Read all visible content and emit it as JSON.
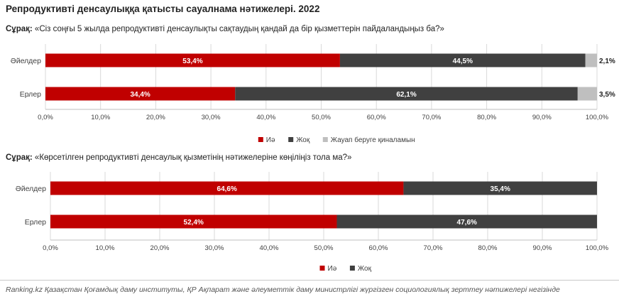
{
  "title": "Репродуктивті денсаулыққа қатысты сауалнама нәтижелері. 2022",
  "question_prefix": "Сұрақ:",
  "colors": {
    "yes": "#c00000",
    "no": "#404040",
    "undecided": "#bfbfbf"
  },
  "chart_data": [
    {
      "type": "bar",
      "orientation": "horizontal",
      "stacked": true,
      "question": "«Сіз соңғы 5 жылда репродуктивті денсаулықты сақтаудың қандай да бір қызметтерін пайдаландыңыз ба?»",
      "categories": [
        "Әйелдер",
        "Ерлер"
      ],
      "series": [
        {
          "name": "Иә",
          "values": [
            53.4,
            34.4
          ],
          "labels": [
            "53,4%",
            "34,4%"
          ]
        },
        {
          "name": "Жоқ",
          "values": [
            44.5,
            62.1
          ],
          "labels": [
            "44,5%",
            "62,1%"
          ]
        },
        {
          "name": "Жауап беруге қиналамын",
          "values": [
            2.1,
            3.5
          ],
          "labels": [
            "2,1%",
            "3,5%"
          ]
        }
      ],
      "xlim": [
        0,
        100
      ],
      "x_ticks": [
        "0,0%",
        "10,0%",
        "20,0%",
        "30,0%",
        "40,0%",
        "50,0%",
        "60,0%",
        "70,0%",
        "80,0%",
        "90,0%",
        "100,0%"
      ],
      "legend_position": "bottom"
    },
    {
      "type": "bar",
      "orientation": "horizontal",
      "stacked": true,
      "question": "«Көрсетілген репродуктивті денсаулық қызметінің нәтижелеріне көңіліңіз тола ма?»",
      "categories": [
        "Әйелдер",
        "Ерлер"
      ],
      "series": [
        {
          "name": "Иә",
          "values": [
            64.6,
            52.4
          ],
          "labels": [
            "64,6%",
            "52,4%"
          ]
        },
        {
          "name": "Жоқ",
          "values": [
            35.4,
            47.6
          ],
          "labels": [
            "35,4%",
            "47,6%"
          ]
        }
      ],
      "xlim": [
        0,
        100
      ],
      "x_ticks": [
        "0,0%",
        "10,0%",
        "20,0%",
        "30,0%",
        "40,0%",
        "50,0%",
        "60,0%",
        "70,0%",
        "80,0%",
        "90,0%",
        "100,0%"
      ],
      "legend_position": "bottom"
    }
  ],
  "source": "Ranking.kz Қазақстан Қоғамдық даму институты, ҚР Ақпарат және әлеуметтік даму министрлігі жүргізген социологиялық зерттеу нәтижелері негізінде"
}
